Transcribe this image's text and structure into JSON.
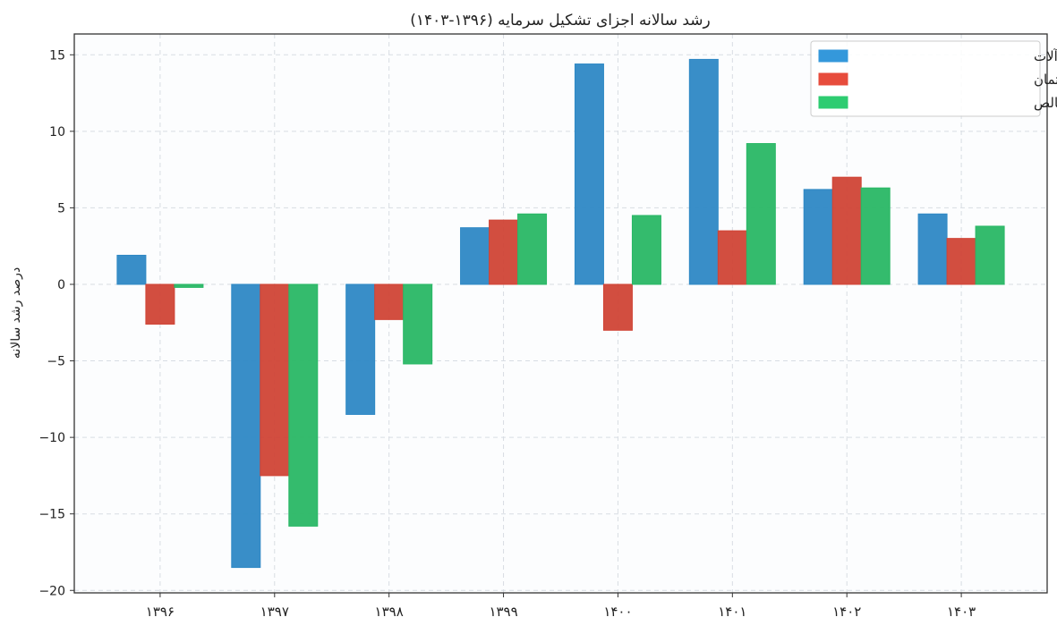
{
  "chart_data": {
    "type": "bar",
    "title": "رشد سالانه اجزای تشکیل سرمایه (۱۳۹۶-۱۴۰۳)",
    "xlabel": "",
    "ylabel": "درصد رشد سالانه",
    "categories": [
      "۱۳۹۶",
      "۱۳۹۷",
      "۱۳۹۸",
      "۱۳۹۹",
      "۱۴۰۰",
      "۱۴۰۱",
      "۱۴۰۲",
      "۱۴۰۳"
    ],
    "series": [
      {
        "name": "ماشین‌آلات",
        "color": "#3498db",
        "values": [
          1.9,
          -18.5,
          -8.5,
          3.7,
          14.4,
          14.7,
          6.2,
          4.6
        ]
      },
      {
        "name": "ساختمان",
        "color": "#e74c3c",
        "values": [
          -2.6,
          -12.5,
          -2.3,
          4.2,
          -3.0,
          3.5,
          7.0,
          3.0
        ]
      },
      {
        "name": "تکشیل سرمایه ثابت ناخالص",
        "color": "#2ecc71",
        "values": [
          -0.2,
          -15.8,
          -5.2,
          4.6,
          4.5,
          9.2,
          6.3,
          3.8
        ]
      }
    ],
    "yticks": [
      -20,
      -15,
      -10,
      -5,
      0,
      5,
      10,
      15
    ],
    "ytick_labels": [
      "−20",
      "−15",
      "−10",
      "−5",
      "0",
      "5",
      "10",
      "15"
    ],
    "ylim": [
      -20.16,
      16.36
    ],
    "grid": true,
    "legend_position": "top-right"
  }
}
